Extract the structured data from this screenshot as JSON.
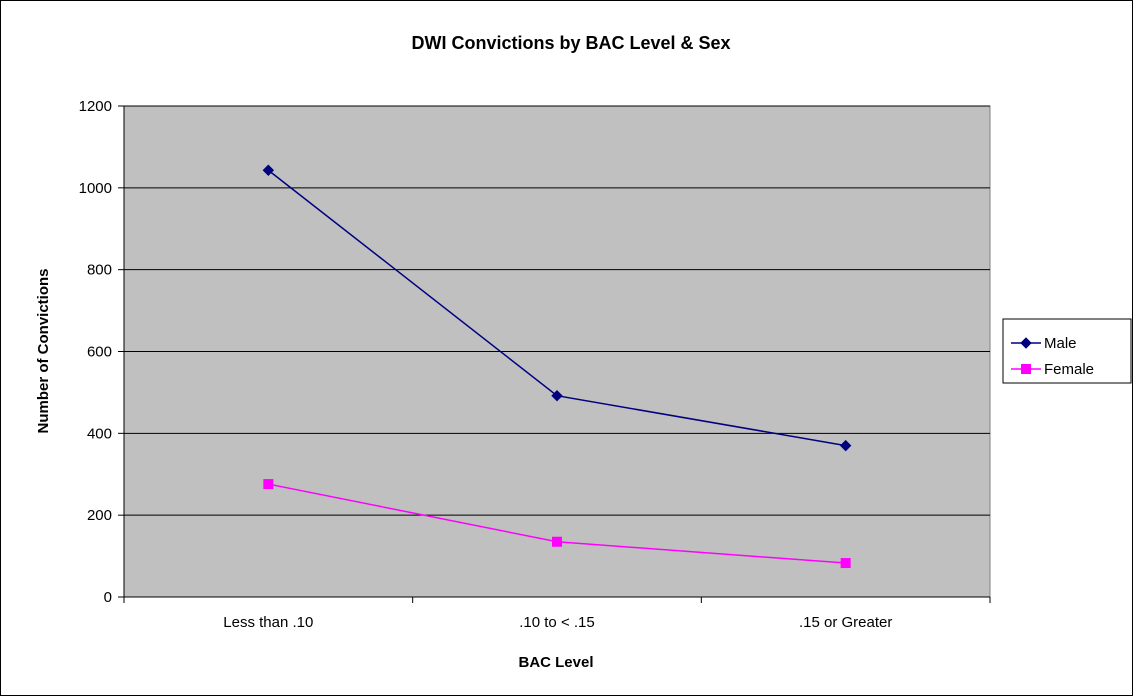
{
  "chart_data": {
    "type": "line",
    "title": "DWI Convictions by BAC Level & Sex",
    "xlabel": "BAC Level",
    "ylabel": "Number of Convictions",
    "categories": [
      "Less than .10",
      ".10 to < .15",
      ".15 or Greater"
    ],
    "ylim": [
      0,
      1200
    ],
    "yticks": [
      "0",
      "200",
      "400",
      "600",
      "800",
      "1000",
      "1200"
    ],
    "grid": true,
    "legend_position": "right",
    "plot_background": "#c0c0c0",
    "series": [
      {
        "name": "Male",
        "values": [
          1043,
          492,
          370
        ],
        "color": "#000080",
        "marker": "diamond"
      },
      {
        "name": "Female",
        "values": [
          276,
          135,
          83
        ],
        "color": "#ff00ff",
        "marker": "square"
      }
    ]
  }
}
